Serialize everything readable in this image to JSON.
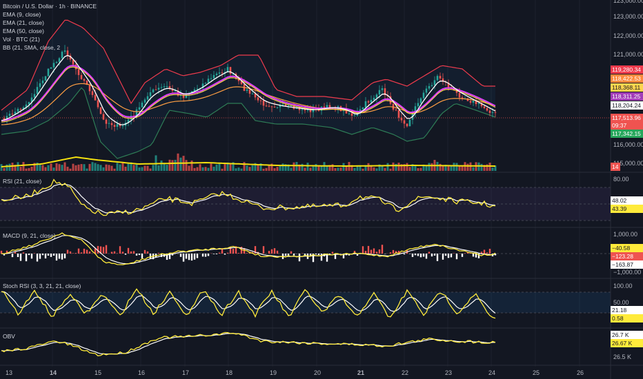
{
  "header": {
    "symbol_title": "Bitcoin / U.S. Dollar · 1h · BINANCE",
    "legends": [
      "EMA (9, close)",
      "EMA (21, close)",
      "EMA (50, close)",
      "Vol · BTC (21)",
      "BB (21, SMA, close, 2"
    ]
  },
  "colors": {
    "background": "#131722",
    "up": "#26a69a",
    "down": "#ef5350",
    "ema9": "#ffffff",
    "ema21": "#e040fb",
    "ema50": "#ffd54f",
    "bb_upper": "#ef3b4d",
    "bb_lower": "#2e7d56",
    "volume_ma": "#f5e10f",
    "indicator_main": "#ffeb3b",
    "indicator_signal": "#ffffff"
  },
  "price_axis": {
    "ticks": [
      "123,000.00",
      "122,000.00",
      "121,000.00",
      "116,000.00",
      "115,000.00"
    ],
    "badges": [
      {
        "text": "119,280.34",
        "bg": "#ef3b4d",
        "fg": "#ffffff"
      },
      {
        "text": "118,422.53",
        "bg": "#ff8a3d",
        "fg": "#ffffff"
      },
      {
        "text": "118,368.11",
        "bg": "#ffd54f",
        "fg": "#131722"
      },
      {
        "text": "118,311.25",
        "bg": "#a23cb8",
        "fg": "#ffffff"
      },
      {
        "text": "118,204.24",
        "bg": "#ffffff",
        "fg": "#131722"
      },
      {
        "text": "117,513.96",
        "bg": "#ef5350",
        "fg": "#ffffff"
      },
      {
        "text": "09:37",
        "bg": "#ef5350",
        "fg": "#ffffff"
      },
      {
        "text": "117,342.15",
        "bg": "#26a65b",
        "fg": "#ffffff"
      }
    ],
    "volume_badge": "14"
  },
  "rsi_panel": {
    "title": "RSI (21, close)",
    "ticks": [
      "80.00"
    ],
    "badges": [
      {
        "text": "48.02",
        "bg": "#ffffff",
        "fg": "#131722"
      },
      {
        "text": "43.39",
        "bg": "#ffeb3b",
        "fg": "#131722"
      }
    ]
  },
  "macd_panel": {
    "title": "MACD (9, 21, close)",
    "ticks": [
      "1,000.00",
      "−1,000.00"
    ],
    "badges": [
      {
        "text": "−40.58",
        "bg": "#ffeb3b",
        "fg": "#131722"
      },
      {
        "text": "−123.28",
        "bg": "#ef5350",
        "fg": "#ffffff"
      },
      {
        "text": "−163.87",
        "bg": "#ffffff",
        "fg": "#131722"
      }
    ]
  },
  "stoch_panel": {
    "title": "Stoch RSI (3, 3, 21, 21, close)",
    "ticks": [
      "100.00",
      "50.00"
    ],
    "badges": [
      {
        "text": "21.18",
        "bg": "#ffffff",
        "fg": "#131722"
      },
      {
        "text": "0.58",
        "bg": "#ffeb3b",
        "fg": "#131722"
      }
    ]
  },
  "obv_panel": {
    "title": "OBV",
    "ticks": [
      "26.5 K"
    ],
    "badges": [
      {
        "text": "26.7 K",
        "bg": "#ffffff",
        "fg": "#131722"
      },
      {
        "text": "26.67 K",
        "bg": "#ffeb3b",
        "fg": "#131722"
      }
    ]
  },
  "time_axis": {
    "labels": [
      {
        "text": "13",
        "bold": false
      },
      {
        "text": "14",
        "bold": true
      },
      {
        "text": "15",
        "bold": false
      },
      {
        "text": "16",
        "bold": false
      },
      {
        "text": "17",
        "bold": false
      },
      {
        "text": "18",
        "bold": false
      },
      {
        "text": "19",
        "bold": false
      },
      {
        "text": "20",
        "bold": false
      },
      {
        "text": "21",
        "bold": true
      },
      {
        "text": "22",
        "bold": false
      },
      {
        "text": "23",
        "bold": false
      },
      {
        "text": "24",
        "bold": false
      },
      {
        "text": "25",
        "bold": false
      },
      {
        "text": "26",
        "bold": false
      }
    ]
  }
}
